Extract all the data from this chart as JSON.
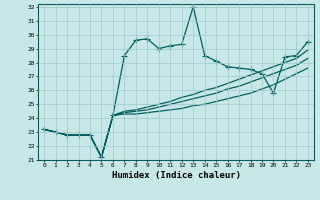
{
  "xlabel": "Humidex (Indice chaleur)",
  "xlim": [
    -0.5,
    23.5
  ],
  "ylim": [
    21,
    32.2
  ],
  "xticks": [
    0,
    1,
    2,
    3,
    4,
    5,
    6,
    7,
    8,
    9,
    10,
    11,
    12,
    13,
    14,
    15,
    16,
    17,
    18,
    19,
    20,
    21,
    22,
    23
  ],
  "yticks": [
    21,
    22,
    23,
    24,
    25,
    26,
    27,
    28,
    29,
    30,
    31,
    32
  ],
  "background_color": "#c8e8e8",
  "grid_color": "#a0c8c8",
  "line_color": "#006060",
  "lines": [
    {
      "x": [
        0,
        1,
        2,
        3,
        4,
        5,
        6,
        7,
        8,
        9,
        10,
        11,
        12,
        13,
        14,
        15,
        16,
        17,
        18,
        19,
        20,
        21,
        22,
        23
      ],
      "y": [
        23.2,
        23.0,
        22.8,
        22.8,
        22.8,
        21.2,
        24.2,
        28.5,
        29.6,
        29.7,
        29.0,
        29.2,
        29.3,
        32.0,
        28.5,
        28.1,
        27.7,
        27.6,
        27.5,
        27.2,
        25.8,
        28.4,
        28.5,
        29.5
      ],
      "marker": true
    },
    {
      "x": [
        0,
        1,
        2,
        3,
        4,
        5,
        6,
        7,
        8,
        9,
        10,
        11,
        12,
        13,
        14,
        15,
        16,
        17,
        18,
        19,
        20,
        21,
        22,
        23
      ],
      "y": [
        23.2,
        23.0,
        22.8,
        22.8,
        22.8,
        21.2,
        24.2,
        24.3,
        24.3,
        24.4,
        24.5,
        24.6,
        24.7,
        24.9,
        25.0,
        25.2,
        25.4,
        25.6,
        25.8,
        26.1,
        26.4,
        26.8,
        27.2,
        27.6
      ],
      "marker": false
    },
    {
      "x": [
        0,
        1,
        2,
        3,
        4,
        5,
        6,
        7,
        8,
        9,
        10,
        11,
        12,
        13,
        14,
        15,
        16,
        17,
        18,
        19,
        20,
        21,
        22,
        23
      ],
      "y": [
        23.2,
        23.0,
        22.8,
        22.8,
        22.8,
        21.2,
        24.2,
        24.4,
        24.5,
        24.6,
        24.8,
        25.0,
        25.2,
        25.4,
        25.6,
        25.8,
        26.1,
        26.3,
        26.6,
        26.9,
        27.2,
        27.5,
        27.8,
        28.3
      ],
      "marker": false
    },
    {
      "x": [
        0,
        1,
        2,
        3,
        4,
        5,
        6,
        7,
        8,
        9,
        10,
        11,
        12,
        13,
        14,
        15,
        16,
        17,
        18,
        19,
        20,
        21,
        22,
        23
      ],
      "y": [
        23.2,
        23.0,
        22.8,
        22.8,
        22.8,
        21.2,
        24.2,
        24.5,
        24.6,
        24.8,
        25.0,
        25.2,
        25.5,
        25.7,
        26.0,
        26.2,
        26.5,
        26.8,
        27.1,
        27.4,
        27.7,
        28.0,
        28.3,
        28.9
      ],
      "marker": false
    }
  ]
}
